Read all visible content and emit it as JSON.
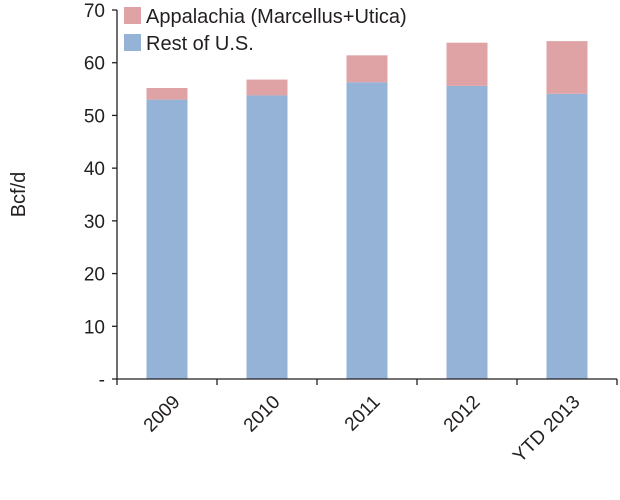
{
  "chart_data": {
    "type": "bar",
    "stacked": true,
    "categories": [
      "2009",
      "2010",
      "2011",
      "2012",
      "YTD 2013"
    ],
    "series": [
      {
        "name": "Rest of U.S.",
        "values": [
          53.0,
          53.8,
          56.3,
          55.6,
          54.1
        ],
        "color": "#95b3d7"
      },
      {
        "name": "Appalachia (Marcellus+Utica)",
        "values": [
          2.2,
          3.0,
          5.1,
          8.2,
          10.0
        ],
        "color": "#e0a3a5"
      }
    ],
    "title": "",
    "xlabel": "",
    "ylabel": "Bcf/d",
    "ylim": [
      0,
      70
    ],
    "ytick_values": [
      0,
      10,
      20,
      30,
      40,
      50,
      60,
      70
    ],
    "ytick_labels": [
      "-",
      "10",
      "20",
      "30",
      "40",
      "50",
      "60",
      "70"
    ],
    "grid": false,
    "legend_position": "top-left"
  }
}
